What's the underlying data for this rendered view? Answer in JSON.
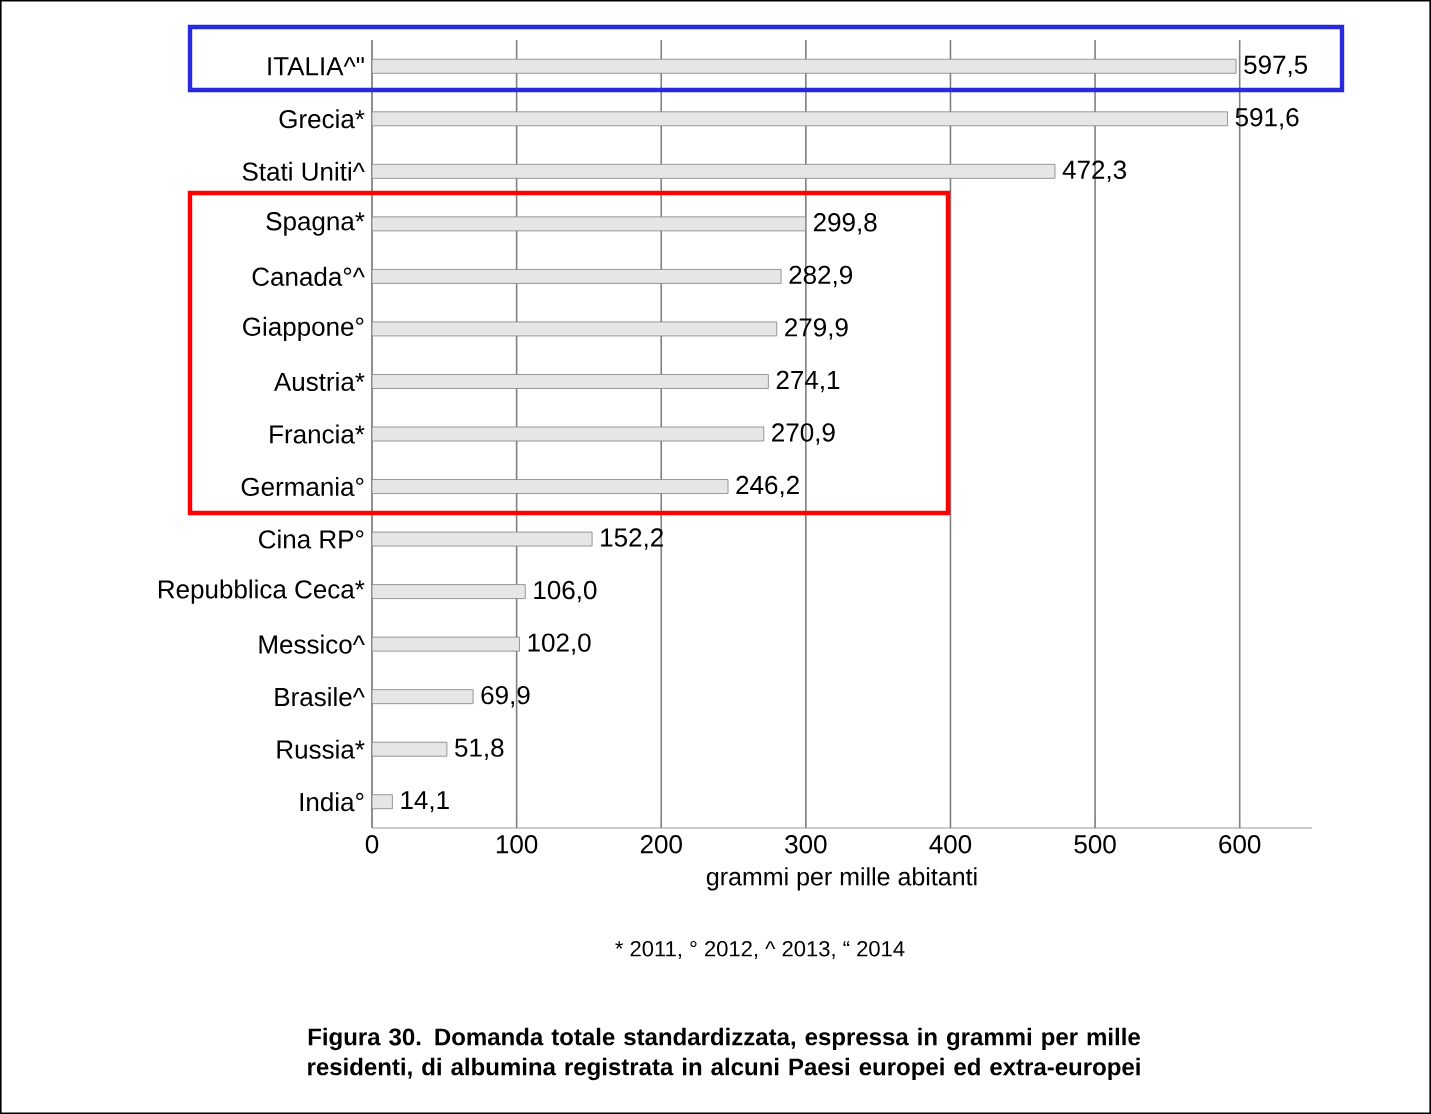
{
  "chart_data": {
    "type": "bar",
    "orientation": "horizontal",
    "title": "Figura 30. Domanda totale standardizzata, espressa in grammi per mille residenti, di albumina registrata in alcuni Paesi europei ed extra-europei",
    "categories": [
      "ITALIA^\"",
      "Grecia*",
      "Stati Uniti^",
      "Spagna*",
      "Canada°^",
      "Giappone°",
      "Austria*",
      "Francia*",
      "Germania°",
      "Cina RP°",
      "Repubblica Ceca*",
      "Messico^",
      "Brasile^",
      "Russia*",
      "India°"
    ],
    "values": [
      597.5,
      591.6,
      472.3,
      299.8,
      282.9,
      279.9,
      274.1,
      270.9,
      246.2,
      152.2,
      106.0,
      102.0,
      69.9,
      51.8,
      14.1
    ],
    "value_labels": [
      "597,5",
      "591,6",
      "472,3",
      "299,8",
      "282,9",
      "279,9",
      "274,1",
      "270,9",
      "246,2",
      "152,2",
      "106,0",
      "102,0",
      "69,9",
      "51,8",
      "14,1"
    ],
    "color": "#e6e6e6",
    "xlim": [
      0,
      650
    ],
    "xticks": [
      0,
      100,
      200,
      300,
      400,
      500,
      600
    ],
    "grid": "x",
    "xlabel": "grammi per mille abitanti",
    "annotations": [
      "* 2011, ° 2012, ^ 2013, “ 2014"
    ]
  }
}
